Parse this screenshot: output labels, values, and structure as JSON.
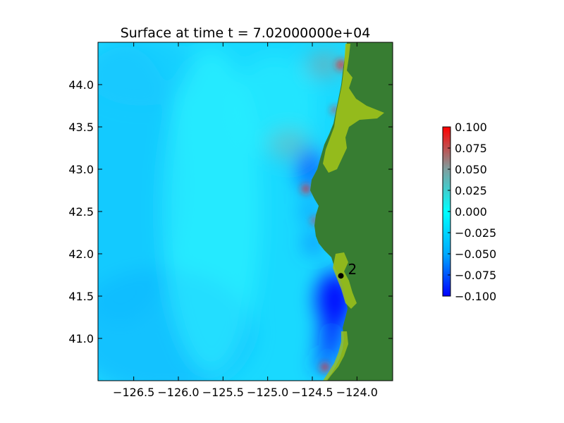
{
  "chart_data": {
    "type": "heatmap",
    "title": "Surface at time t = 7.02000000e+04",
    "xlabel": "",
    "ylabel": "",
    "xlim": [
      -126.9,
      -123.6
    ],
    "ylim": [
      40.5,
      44.5
    ],
    "x_ticks": [
      {
        "value": -126.5,
        "label": "−126.5"
      },
      {
        "value": -126.0,
        "label": "−126.0"
      },
      {
        "value": -125.5,
        "label": "−125.5"
      },
      {
        "value": -125.0,
        "label": "−125.0"
      },
      {
        "value": -124.5,
        "label": "−124.5"
      },
      {
        "value": -124.0,
        "label": "−124.0"
      }
    ],
    "y_ticks": [
      {
        "value": 41.0,
        "label": "41.0"
      },
      {
        "value": 41.5,
        "label": "41.5"
      },
      {
        "value": 42.0,
        "label": "42.0"
      },
      {
        "value": 42.5,
        "label": "42.5"
      },
      {
        "value": 43.0,
        "label": "43.0"
      },
      {
        "value": 43.5,
        "label": "43.5"
      },
      {
        "value": 44.0,
        "label": "44.0"
      }
    ],
    "colorbar": {
      "range": [
        -0.1,
        0.1
      ],
      "ticks": [
        {
          "value": 0.1,
          "label": "0.100"
        },
        {
          "value": 0.075,
          "label": "0.075"
        },
        {
          "value": 0.05,
          "label": "0.050"
        },
        {
          "value": 0.025,
          "label": "0.025"
        },
        {
          "value": 0.0,
          "label": "0.000"
        },
        {
          "value": -0.025,
          "label": "−0.025"
        },
        {
          "value": -0.05,
          "label": "−0.050"
        },
        {
          "value": -0.075,
          "label": "−0.075"
        },
        {
          "value": -0.1,
          "label": "−0.100"
        }
      ],
      "colors": [
        "#0000ff",
        "#00aaff",
        "#00ffff",
        "#7f7f7f",
        "#ff0000"
      ]
    },
    "gauges": [
      {
        "label": "2",
        "lon": -124.18,
        "lat": 41.74
      }
    ],
    "colors": {
      "land": "#377d32",
      "shore": "#9fc21a",
      "water_base": "#19d9ff",
      "high": "#ff2a2a",
      "low": "#0000ff"
    }
  }
}
